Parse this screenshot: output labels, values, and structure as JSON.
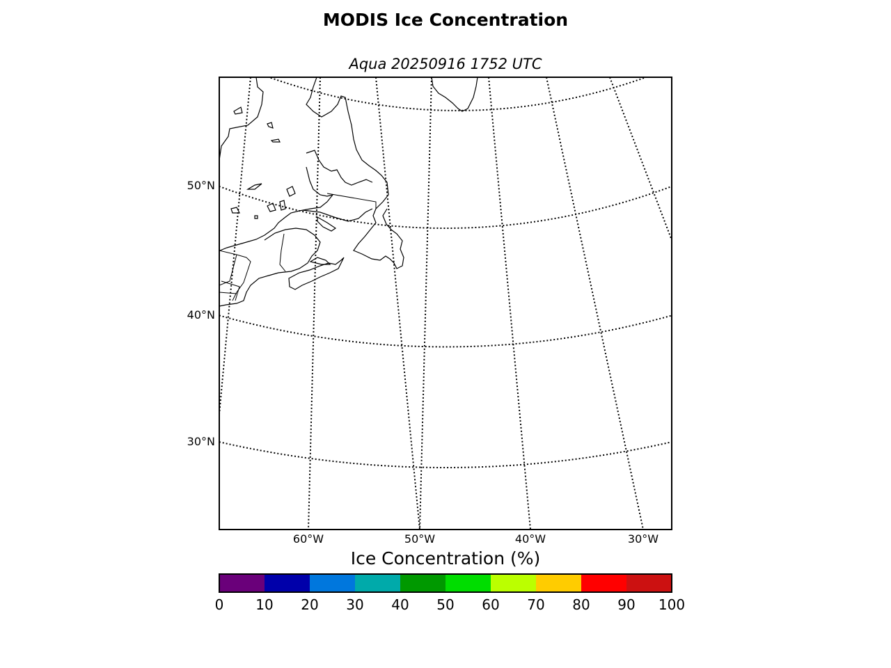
{
  "title": "MODIS Ice Concentration",
  "subtitle": "Aqua 20250916 1752 UTC",
  "map": {
    "lat_labels": [
      {
        "label": "50°N",
        "lat": 50
      },
      {
        "label": "40°N",
        "lat": 40
      },
      {
        "label": "30°N",
        "lat": 30
      }
    ],
    "lon_labels": [
      {
        "label": "60°W",
        "lon": -60
      },
      {
        "label": "50°W",
        "lon": -50
      },
      {
        "label": "40°W",
        "lon": -40
      },
      {
        "label": "30°W",
        "lon": -30
      }
    ],
    "parallels": [
      60,
      50,
      40,
      30
    ],
    "meridians": [
      -70,
      -60,
      -50,
      -40,
      -30,
      -20
    ],
    "gridline_style": "dotted",
    "data_shown": "none"
  },
  "colorbar": {
    "label": "Ice Concentration (%)",
    "ticks": [
      "0",
      "10",
      "20",
      "30",
      "40",
      "50",
      "60",
      "70",
      "80",
      "90",
      "100"
    ],
    "colors": [
      "#6a007a",
      "#0000aa",
      "#0077dd",
      "#00aaaa",
      "#009900",
      "#00dd00",
      "#bbff00",
      "#ffcc00",
      "#ff0000",
      "#cc1111"
    ]
  }
}
